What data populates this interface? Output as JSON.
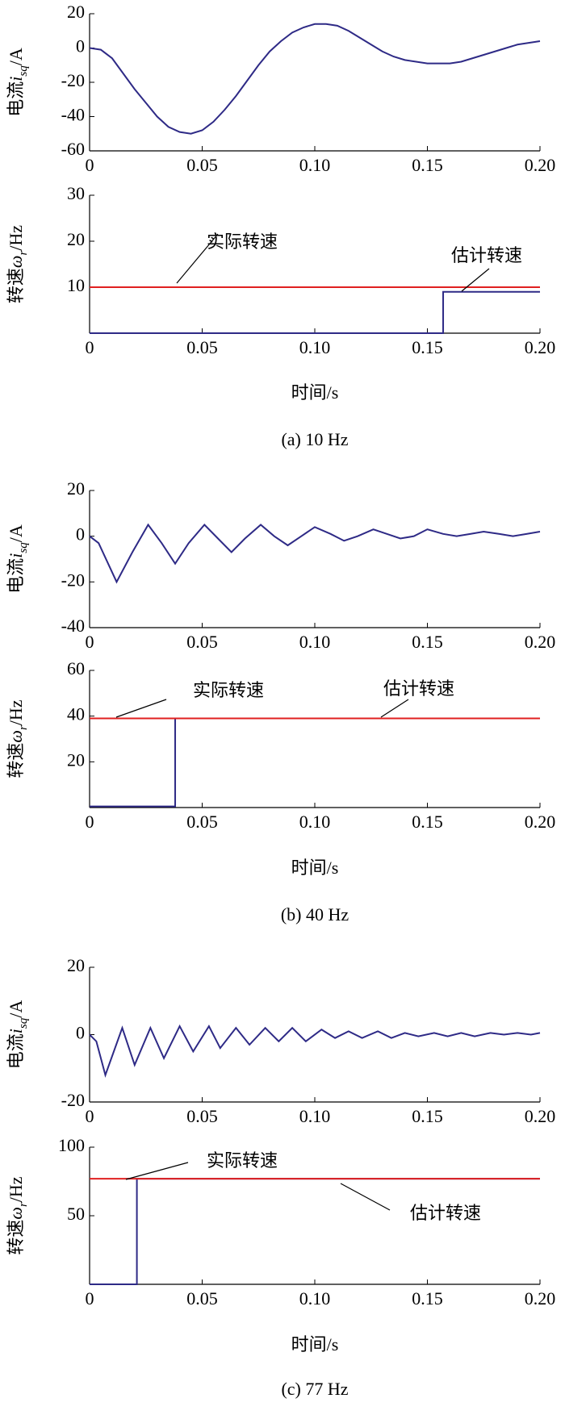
{
  "chart_data": [
    {
      "type": "line",
      "ylabel_parts": [
        "电流",
        "i",
        "sq",
        "/A"
      ],
      "xlim": [
        0,
        0.2
      ],
      "ylim": [
        -60,
        20
      ],
      "yticks": [
        -60,
        -40,
        -20,
        0,
        20
      ],
      "xticks": [
        0,
        0.05,
        {
          "value": 0.1,
          "label": "0.10"
        },
        0.15,
        {
          "value": 0.2,
          "label": "0.20"
        }
      ],
      "series": [
        {
          "color": "#2e2a86",
          "x": [
            0,
            0.005,
            0.01,
            0.015,
            0.02,
            0.025,
            0.03,
            0.035,
            0.04,
            0.045,
            0.05,
            0.055,
            0.06,
            0.065,
            0.07,
            0.075,
            0.08,
            0.085,
            0.09,
            0.095,
            0.1,
            0.105,
            0.11,
            0.115,
            0.12,
            0.125,
            0.13,
            0.135,
            0.14,
            0.145,
            0.15,
            0.155,
            0.16,
            0.165,
            0.17,
            0.175,
            0.18,
            0.185,
            0.19,
            0.195,
            0.2
          ],
          "values": [
            0,
            -1,
            -6,
            -15,
            -24,
            -32,
            -40,
            -46,
            -49,
            -50,
            -48,
            -43,
            -36,
            -28,
            -19,
            -10,
            -2,
            4,
            9,
            12,
            14,
            14,
            13,
            10,
            6,
            2,
            -2,
            -5,
            -7,
            -8,
            -9,
            -9,
            -9,
            -8,
            -6,
            -4,
            -2,
            0,
            2,
            3,
            4
          ]
        }
      ]
    },
    {
      "type": "line",
      "ylabel_parts": [
        "转速",
        "ω",
        "r",
        "/Hz"
      ],
      "xlabel": "时间/s",
      "caption": "(a) 10 Hz",
      "xlim": [
        0,
        0.2
      ],
      "ylim": [
        0,
        30
      ],
      "yticks": [
        10,
        20,
        30
      ],
      "xticks": [
        0,
        0.05,
        {
          "value": 0.1,
          "label": "0.10"
        },
        0.15,
        {
          "value": 0.2,
          "label": "0.20"
        }
      ],
      "annotations": [
        "实际转速",
        "估计转速"
      ],
      "series": [
        {
          "color": "#e02020",
          "x": [
            0,
            0.2
          ],
          "values": [
            10,
            10
          ]
        },
        {
          "color": "#2e2a86",
          "x": [
            0,
            0.157,
            0.157,
            0.2
          ],
          "values": [
            0,
            0,
            9,
            9
          ]
        }
      ]
    },
    {
      "type": "line",
      "ylabel_parts": [
        "电流",
        "i",
        "sq",
        "/A"
      ],
      "xlim": [
        0,
        0.2
      ],
      "ylim": [
        -40,
        20
      ],
      "yticks": [
        -40,
        -20,
        0,
        20
      ],
      "xticks": [
        0,
        0.05,
        {
          "value": 0.1,
          "label": "0.10"
        },
        0.15,
        {
          "value": 0.2,
          "label": "0.20"
        }
      ],
      "series": [
        {
          "color": "#2e2a86",
          "x": [
            0,
            0.004,
            0.012,
            0.019,
            0.026,
            0.032,
            0.038,
            0.044,
            0.051,
            0.057,
            0.063,
            0.069,
            0.076,
            0.082,
            0.088,
            0.094,
            0.1,
            0.107,
            0.113,
            0.119,
            0.126,
            0.132,
            0.138,
            0.144,
            0.15,
            0.157,
            0.163,
            0.169,
            0.175,
            0.182,
            0.188,
            0.194,
            0.2
          ],
          "values": [
            0,
            -3,
            -20,
            -7,
            5,
            -3,
            -12,
            -3,
            5,
            -1,
            -7,
            -1,
            5,
            0,
            -4,
            0,
            4,
            1,
            -2,
            0,
            3,
            1,
            -1,
            0,
            3,
            1,
            0,
            1,
            2,
            1,
            0,
            1,
            2
          ]
        }
      ]
    },
    {
      "type": "line",
      "ylabel_parts": [
        "转速",
        "ω",
        "r",
        "/Hz"
      ],
      "xlabel": "时间/s",
      "caption": "(b) 40 Hz",
      "xlim": [
        0,
        0.2
      ],
      "ylim": [
        0,
        60
      ],
      "yticks": [
        20,
        40,
        60
      ],
      "xticks": [
        0,
        0.05,
        {
          "value": 0.1,
          "label": "0.10"
        },
        0.15,
        {
          "value": 0.2,
          "label": "0.20"
        }
      ],
      "annotations": [
        "实际转速",
        "估计转速"
      ],
      "series": [
        {
          "color": "#2e2a86",
          "x": [
            0,
            0.038,
            0.038,
            0.2
          ],
          "values": [
            0.5,
            0.5,
            39,
            39
          ]
        },
        {
          "color": "#e02020",
          "x": [
            0,
            0.2
          ],
          "values": [
            39,
            39
          ]
        }
      ]
    },
    {
      "type": "line",
      "ylabel_parts": [
        "电流",
        "i",
        "sq",
        "/A"
      ],
      "xlim": [
        0,
        0.2
      ],
      "ylim": [
        -20,
        20
      ],
      "yticks": [
        -20,
        0,
        20
      ],
      "xticks": [
        0,
        0.05,
        {
          "value": 0.1,
          "label": "0.10"
        },
        0.15,
        {
          "value": 0.2,
          "label": "0.20"
        }
      ],
      "series": [
        {
          "color": "#2e2a86",
          "x": [
            0,
            0.003,
            0.007,
            0.0145,
            0.02,
            0.027,
            0.033,
            0.04,
            0.046,
            0.053,
            0.058,
            0.065,
            0.071,
            0.078,
            0.084,
            0.09,
            0.096,
            0.103,
            0.109,
            0.115,
            0.121,
            0.128,
            0.134,
            0.14,
            0.146,
            0.153,
            0.159,
            0.165,
            0.171,
            0.178,
            0.184,
            0.19,
            0.196,
            0.2
          ],
          "values": [
            0,
            -2,
            -12,
            2,
            -9,
            2,
            -7,
            2.5,
            -5,
            2.5,
            -4,
            2,
            -3,
            2,
            -2,
            2,
            -2,
            1.5,
            -1,
            1,
            -1,
            1,
            -1,
            0.5,
            -0.5,
            0.5,
            -0.5,
            0.5,
            -0.5,
            0.5,
            0,
            0.5,
            0,
            0.5
          ]
        }
      ]
    },
    {
      "type": "line",
      "ylabel_parts": [
        "转速",
        "ω",
        "r",
        "/Hz"
      ],
      "xlabel": "时间/s",
      "caption": "(c) 77 Hz",
      "xlim": [
        0,
        0.2
      ],
      "ylim": [
        0,
        100
      ],
      "yticks": [
        50,
        100
      ],
      "xticks": [
        0,
        0.05,
        {
          "value": 0.1,
          "label": "0.10"
        },
        0.15,
        {
          "value": 0.2,
          "label": "0.20"
        }
      ],
      "annotations": [
        "实际转速",
        "估计转速"
      ],
      "series": [
        {
          "color": "#2e2a86",
          "x": [
            0,
            0.021,
            0.021,
            0.2
          ],
          "values": [
            0,
            0,
            77,
            77
          ]
        },
        {
          "color": "#e02020",
          "x": [
            0,
            0.2
          ],
          "values": [
            77,
            77
          ]
        }
      ]
    }
  ]
}
